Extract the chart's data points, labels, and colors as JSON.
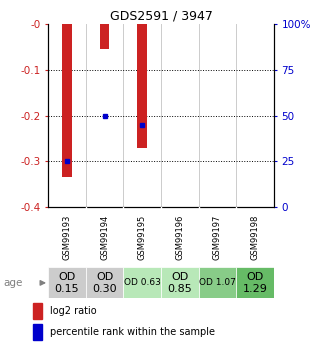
{
  "title": "GDS2591 / 3947",
  "samples": [
    "GSM99193",
    "GSM99194",
    "GSM99195",
    "GSM99196",
    "GSM99197",
    "GSM99198"
  ],
  "log2_ratio": [
    -0.335,
    -0.055,
    -0.27,
    0.0,
    0.0,
    0.0
  ],
  "percentile_rank": [
    25.0,
    50.0,
    45.0,
    null,
    null,
    null
  ],
  "ylim_left": [
    -0.4,
    0.0
  ],
  "ylim_right": [
    0,
    100
  ],
  "yticks_left": [
    -0.4,
    -0.3,
    -0.2,
    -0.1,
    0.0
  ],
  "yticks_right": [
    0,
    25,
    50,
    75,
    100
  ],
  "ytick_labels_left": [
    "-0.4",
    "-0.3",
    "-0.2",
    "-0.1",
    "-0"
  ],
  "ytick_labels_right": [
    "0",
    "25",
    "50",
    "75",
    "100%"
  ],
  "bar_color": "#cc2222",
  "point_color": "#0000cc",
  "bg_color": "#ffffff",
  "age_label": "age",
  "age_values": [
    "OD\n0.15",
    "OD\n0.30",
    "OD 0.63",
    "OD\n0.85",
    "OD 1.07",
    "OD\n1.29"
  ],
  "age_bg_colors": [
    "#cccccc",
    "#cccccc",
    "#b8e8b8",
    "#b8e8b8",
    "#88cc88",
    "#66bb66"
  ],
  "age_font_sizes": [
    8,
    8,
    6.5,
    8,
    6.5,
    8
  ],
  "sample_bg_color": "#cccccc",
  "left_axis_color": "#cc2222",
  "right_axis_color": "#0000cc",
  "bar_width": 0.25
}
